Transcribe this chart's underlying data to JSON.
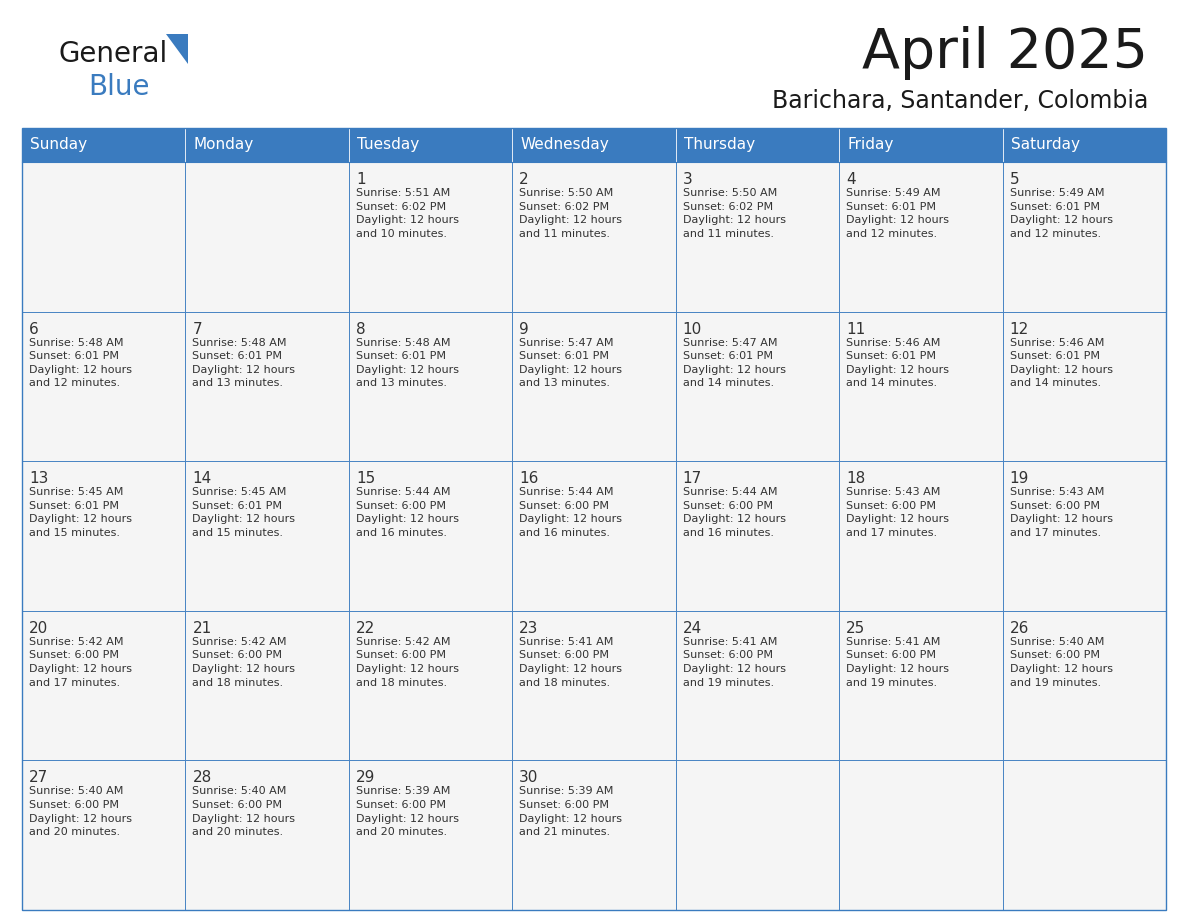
{
  "title": "April 2025",
  "subtitle": "Barichara, Santander, Colombia",
  "days_of_week": [
    "Sunday",
    "Monday",
    "Tuesday",
    "Wednesday",
    "Thursday",
    "Friday",
    "Saturday"
  ],
  "header_bg": "#3a7bbf",
  "header_text": "#ffffff",
  "cell_bg": "#f5f5f5",
  "border_color": "#3a7bbf",
  "text_color": "#333333",
  "title_color": "#1a1a1a",
  "logo_general_color": "#1a1a1a",
  "logo_blue_color": "#3a7bbf",
  "logo_triangle_color": "#3a7bbf",
  "calendar_data": [
    [
      {
        "day": "",
        "info": ""
      },
      {
        "day": "",
        "info": ""
      },
      {
        "day": "1",
        "info": "Sunrise: 5:51 AM\nSunset: 6:02 PM\nDaylight: 12 hours\nand 10 minutes."
      },
      {
        "day": "2",
        "info": "Sunrise: 5:50 AM\nSunset: 6:02 PM\nDaylight: 12 hours\nand 11 minutes."
      },
      {
        "day": "3",
        "info": "Sunrise: 5:50 AM\nSunset: 6:02 PM\nDaylight: 12 hours\nand 11 minutes."
      },
      {
        "day": "4",
        "info": "Sunrise: 5:49 AM\nSunset: 6:01 PM\nDaylight: 12 hours\nand 12 minutes."
      },
      {
        "day": "5",
        "info": "Sunrise: 5:49 AM\nSunset: 6:01 PM\nDaylight: 12 hours\nand 12 minutes."
      }
    ],
    [
      {
        "day": "6",
        "info": "Sunrise: 5:48 AM\nSunset: 6:01 PM\nDaylight: 12 hours\nand 12 minutes."
      },
      {
        "day": "7",
        "info": "Sunrise: 5:48 AM\nSunset: 6:01 PM\nDaylight: 12 hours\nand 13 minutes."
      },
      {
        "day": "8",
        "info": "Sunrise: 5:48 AM\nSunset: 6:01 PM\nDaylight: 12 hours\nand 13 minutes."
      },
      {
        "day": "9",
        "info": "Sunrise: 5:47 AM\nSunset: 6:01 PM\nDaylight: 12 hours\nand 13 minutes."
      },
      {
        "day": "10",
        "info": "Sunrise: 5:47 AM\nSunset: 6:01 PM\nDaylight: 12 hours\nand 14 minutes."
      },
      {
        "day": "11",
        "info": "Sunrise: 5:46 AM\nSunset: 6:01 PM\nDaylight: 12 hours\nand 14 minutes."
      },
      {
        "day": "12",
        "info": "Sunrise: 5:46 AM\nSunset: 6:01 PM\nDaylight: 12 hours\nand 14 minutes."
      }
    ],
    [
      {
        "day": "13",
        "info": "Sunrise: 5:45 AM\nSunset: 6:01 PM\nDaylight: 12 hours\nand 15 minutes."
      },
      {
        "day": "14",
        "info": "Sunrise: 5:45 AM\nSunset: 6:01 PM\nDaylight: 12 hours\nand 15 minutes."
      },
      {
        "day": "15",
        "info": "Sunrise: 5:44 AM\nSunset: 6:00 PM\nDaylight: 12 hours\nand 16 minutes."
      },
      {
        "day": "16",
        "info": "Sunrise: 5:44 AM\nSunset: 6:00 PM\nDaylight: 12 hours\nand 16 minutes."
      },
      {
        "day": "17",
        "info": "Sunrise: 5:44 AM\nSunset: 6:00 PM\nDaylight: 12 hours\nand 16 minutes."
      },
      {
        "day": "18",
        "info": "Sunrise: 5:43 AM\nSunset: 6:00 PM\nDaylight: 12 hours\nand 17 minutes."
      },
      {
        "day": "19",
        "info": "Sunrise: 5:43 AM\nSunset: 6:00 PM\nDaylight: 12 hours\nand 17 minutes."
      }
    ],
    [
      {
        "day": "20",
        "info": "Sunrise: 5:42 AM\nSunset: 6:00 PM\nDaylight: 12 hours\nand 17 minutes."
      },
      {
        "day": "21",
        "info": "Sunrise: 5:42 AM\nSunset: 6:00 PM\nDaylight: 12 hours\nand 18 minutes."
      },
      {
        "day": "22",
        "info": "Sunrise: 5:42 AM\nSunset: 6:00 PM\nDaylight: 12 hours\nand 18 minutes."
      },
      {
        "day": "23",
        "info": "Sunrise: 5:41 AM\nSunset: 6:00 PM\nDaylight: 12 hours\nand 18 minutes."
      },
      {
        "day": "24",
        "info": "Sunrise: 5:41 AM\nSunset: 6:00 PM\nDaylight: 12 hours\nand 19 minutes."
      },
      {
        "day": "25",
        "info": "Sunrise: 5:41 AM\nSunset: 6:00 PM\nDaylight: 12 hours\nand 19 minutes."
      },
      {
        "day": "26",
        "info": "Sunrise: 5:40 AM\nSunset: 6:00 PM\nDaylight: 12 hours\nand 19 minutes."
      }
    ],
    [
      {
        "day": "27",
        "info": "Sunrise: 5:40 AM\nSunset: 6:00 PM\nDaylight: 12 hours\nand 20 minutes."
      },
      {
        "day": "28",
        "info": "Sunrise: 5:40 AM\nSunset: 6:00 PM\nDaylight: 12 hours\nand 20 minutes."
      },
      {
        "day": "29",
        "info": "Sunrise: 5:39 AM\nSunset: 6:00 PM\nDaylight: 12 hours\nand 20 minutes."
      },
      {
        "day": "30",
        "info": "Sunrise: 5:39 AM\nSunset: 6:00 PM\nDaylight: 12 hours\nand 21 minutes."
      },
      {
        "day": "",
        "info": ""
      },
      {
        "day": "",
        "info": ""
      },
      {
        "day": "",
        "info": ""
      }
    ]
  ]
}
